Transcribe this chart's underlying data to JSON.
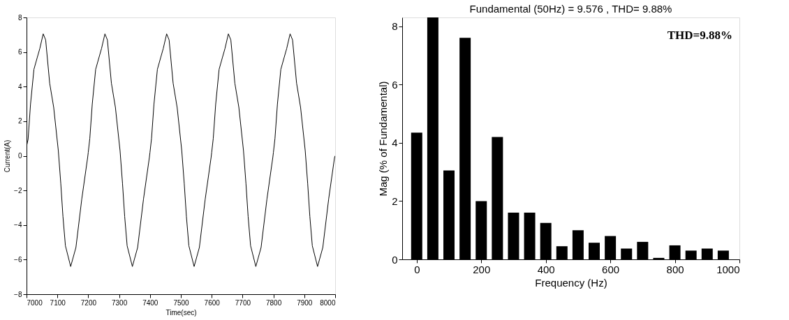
{
  "chart_data": [
    {
      "type": "line",
      "xlabel": "Time(sec)",
      "ylabel": "Current(A)",
      "color": "#000000",
      "xlim": [
        7000,
        8000
      ],
      "ylim": [
        -8,
        8
      ],
      "xticks": [
        7000,
        7100,
        7200,
        7300,
        7400,
        7500,
        7600,
        7700,
        7800,
        7900,
        8000
      ],
      "yticks": [
        -8,
        -6,
        -4,
        -2,
        0,
        2,
        4,
        6,
        8
      ],
      "x": [
        7000,
        7005,
        7013,
        7024,
        7035,
        7043,
        7054,
        7062,
        7075,
        7088,
        7103,
        7111,
        7118,
        7126,
        7143,
        7160,
        7179,
        7198,
        7200,
        7205,
        7213,
        7224,
        7235,
        7243,
        7254,
        7262,
        7275,
        7288,
        7303,
        7311,
        7318,
        7326,
        7343,
        7360,
        7379,
        7398,
        7400,
        7405,
        7413,
        7424,
        7435,
        7443,
        7454,
        7462,
        7475,
        7488,
        7503,
        7511,
        7518,
        7526,
        7543,
        7560,
        7579,
        7598,
        7600,
        7605,
        7613,
        7624,
        7635,
        7643,
        7654,
        7662,
        7675,
        7688,
        7703,
        7711,
        7718,
        7726,
        7743,
        7760,
        7779,
        7798,
        7800,
        7805,
        7813,
        7824,
        7835,
        7843,
        7854,
        7862,
        7875,
        7888,
        7903,
        7911,
        7918,
        7926,
        7943,
        7960,
        7979,
        7998,
        8000
      ],
      "values": [
        0.55,
        0.95,
        3.0,
        5.0,
        5.7,
        6.2,
        7.05,
        6.7,
        4.2,
        2.8,
        0.3,
        -1.6,
        -3.5,
        -5.2,
        -6.4,
        -5.3,
        -2.5,
        -0.1,
        0.2,
        1.0,
        3.0,
        5.0,
        5.7,
        6.2,
        7.05,
        6.7,
        4.2,
        2.8,
        0.3,
        -1.6,
        -3.5,
        -5.2,
        -6.4,
        -5.3,
        -2.5,
        -0.1,
        0.2,
        1.0,
        3.0,
        5.0,
        5.7,
        6.2,
        7.05,
        6.7,
        4.2,
        2.8,
        0.3,
        -1.6,
        -3.5,
        -5.2,
        -6.4,
        -5.3,
        -2.5,
        -0.1,
        0.2,
        1.0,
        3.0,
        5.0,
        5.7,
        6.2,
        7.05,
        6.7,
        4.2,
        2.8,
        0.3,
        -1.6,
        -3.5,
        -5.2,
        -6.4,
        -5.3,
        -2.5,
        -0.1,
        0.2,
        1.0,
        3.0,
        5.0,
        5.7,
        6.2,
        7.05,
        6.7,
        4.2,
        2.8,
        0.3,
        -1.6,
        -3.5,
        -5.2,
        -6.4,
        -5.3,
        -2.5,
        -0.1,
        0.0
      ]
    },
    {
      "type": "bar",
      "title": "Fundamental (50Hz) = 9.576 , THD= 9.88%",
      "xlabel": "Frequency (Hz)",
      "ylabel": "Mag (% of Fundamental)",
      "color": "#000000",
      "xlim": [
        -45,
        1000
      ],
      "ylim": [
        0,
        8.3
      ],
      "xticks": [
        0,
        200,
        400,
        600,
        800,
        1000
      ],
      "yticks": [
        0,
        2,
        4,
        6,
        8
      ],
      "x": [
        0,
        50,
        100,
        150,
        200,
        250,
        300,
        350,
        400,
        450,
        500,
        550,
        600,
        650,
        700,
        750,
        800,
        850,
        900,
        950
      ],
      "values": [
        4.35,
        8.3,
        3.05,
        7.6,
        2.0,
        4.2,
        1.6,
        1.6,
        1.25,
        0.45,
        1.0,
        0.57,
        0.8,
        0.37,
        0.6,
        0.05,
        0.48,
        0.3,
        0.37,
        0.3
      ],
      "annotations": [
        "THD=9.88%"
      ]
    }
  ]
}
